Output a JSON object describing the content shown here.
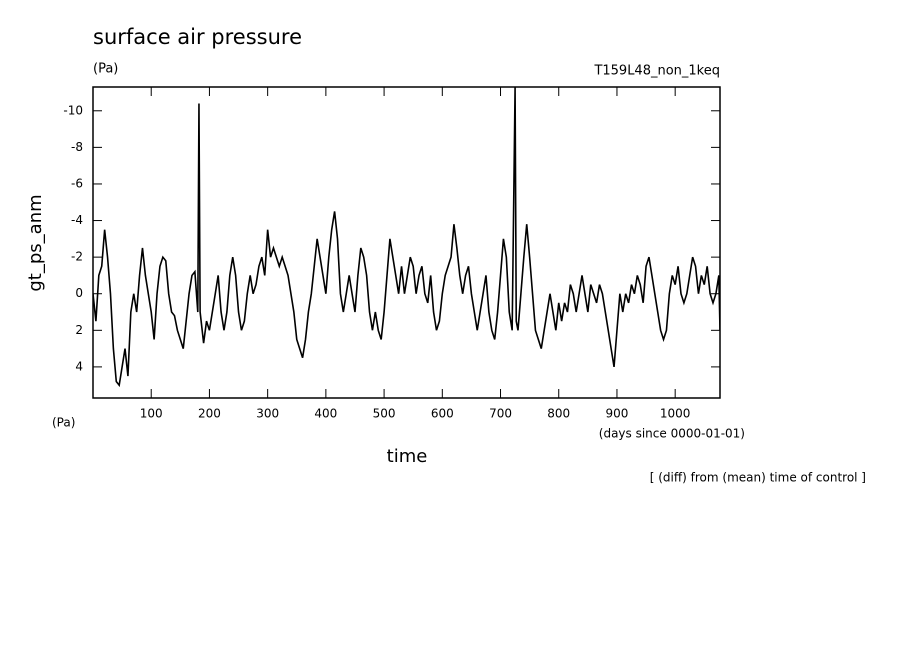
{
  "chart_data": {
    "type": "line",
    "title": "surface air pressure",
    "unit_label": "(Pa)",
    "run_label": "T159L48_non_1keq",
    "y_label": "gt_ps_anm",
    "y_unit_label": "(Pa)",
    "x_label": "time",
    "x_unit_label": "(days since 0000-01-01)",
    "note": "[ (diff) from (mean) time of control ]",
    "color": "#000000",
    "xlim": [
      0,
      1077
    ],
    "ylim": [
      5.7,
      -11.3
    ],
    "xticks": [
      100,
      200,
      300,
      400,
      500,
      600,
      700,
      800,
      900,
      1000
    ],
    "yticks": [
      -10,
      -8,
      -6,
      -4,
      -2,
      0,
      2,
      4
    ],
    "x": [
      0,
      5,
      10,
      15,
      20,
      25,
      30,
      35,
      40,
      45,
      50,
      55,
      60,
      65,
      70,
      75,
      80,
      85,
      90,
      95,
      100,
      105,
      110,
      115,
      120,
      125,
      130,
      135,
      140,
      145,
      150,
      155,
      160,
      165,
      170,
      175,
      180,
      182,
      184,
      190,
      195,
      200,
      205,
      210,
      215,
      220,
      225,
      230,
      235,
      240,
      245,
      250,
      255,
      260,
      265,
      270,
      275,
      280,
      285,
      290,
      295,
      300,
      305,
      310,
      315,
      320,
      325,
      330,
      335,
      340,
      345,
      350,
      355,
      360,
      365,
      370,
      375,
      380,
      385,
      390,
      395,
      400,
      405,
      410,
      415,
      420,
      425,
      430,
      435,
      440,
      445,
      450,
      455,
      460,
      465,
      470,
      475,
      480,
      485,
      490,
      495,
      500,
      505,
      510,
      515,
      520,
      525,
      530,
      535,
      540,
      545,
      550,
      555,
      560,
      565,
      570,
      575,
      580,
      585,
      590,
      595,
      600,
      605,
      610,
      615,
      620,
      625,
      630,
      635,
      640,
      645,
      650,
      655,
      660,
      665,
      670,
      675,
      680,
      685,
      690,
      695,
      700,
      705,
      710,
      715,
      720,
      725,
      727,
      730,
      735,
      740,
      745,
      750,
      755,
      760,
      765,
      770,
      775,
      780,
      785,
      790,
      795,
      800,
      805,
      810,
      815,
      820,
      825,
      830,
      835,
      840,
      845,
      850,
      855,
      860,
      865,
      870,
      875,
      880,
      885,
      890,
      895,
      900,
      905,
      910,
      915,
      920,
      925,
      930,
      935,
      940,
      945,
      950,
      955,
      960,
      965,
      970,
      975,
      980,
      985,
      990,
      995,
      1000,
      1005,
      1010,
      1015,
      1020,
      1025,
      1030,
      1035,
      1040,
      1045,
      1050,
      1055,
      1060,
      1065,
      1070,
      1075,
      1077
    ],
    "values": [
      0,
      1.5,
      -1,
      -1.5,
      -3.5,
      -2,
      0,
      3,
      4.8,
      5,
      4,
      3,
      4.5,
      1,
      0,
      1,
      -1,
      -2.5,
      -1,
      0,
      1,
      2.5,
      0,
      -1.5,
      -2,
      -1.8,
      0,
      1,
      1.2,
      2,
      2.5,
      3,
      1.5,
      0,
      -1,
      -1.2,
      1,
      -10.4,
      1,
      2.7,
      1.5,
      2,
      1,
      0,
      -1,
      1,
      2,
      1,
      -1,
      -2,
      -1,
      1,
      2,
      1.5,
      0,
      -1,
      0,
      -0.5,
      -1.5,
      -2,
      -1,
      -3.5,
      -2,
      -2.5,
      -2,
      -1.5,
      -2,
      -1.5,
      -1,
      0,
      1,
      2.5,
      3,
      3.5,
      2.5,
      1,
      0,
      -1.5,
      -3,
      -2,
      -1,
      0,
      -2,
      -3.5,
      -4.5,
      -3,
      0,
      1,
      0,
      -1,
      0,
      1,
      -1,
      -2.5,
      -2,
      -1,
      1,
      2,
      1,
      2,
      2.5,
      1,
      -1,
      -3,
      -2,
      -1,
      0,
      -1.5,
      0,
      -1,
      -2,
      -1.5,
      0,
      -1,
      -1.5,
      0,
      0.5,
      -1,
      1,
      2,
      1.5,
      0,
      -1,
      -1.5,
      -2,
      -3.8,
      -2.5,
      -1,
      0,
      -1,
      -1.5,
      0,
      1,
      2,
      1,
      0,
      -1,
      1,
      2,
      2.5,
      1,
      -1,
      -3,
      -2,
      1,
      2,
      -11.3,
      1.5,
      2,
      0,
      -2,
      -3.8,
      -2,
      0,
      2,
      2.5,
      3,
      2,
      1,
      0,
      1,
      2,
      0.5,
      1.5,
      0.5,
      1,
      -0.5,
      0,
      1,
      0,
      -1,
      0,
      1,
      -0.5,
      0,
      0.5,
      -0.5,
      0,
      1,
      2,
      3,
      4,
      2,
      0,
      1,
      0,
      0.5,
      -0.5,
      0,
      -1,
      -0.5,
      0.5,
      -1.5,
      -2,
      -1,
      0,
      1,
      2,
      2.5,
      2,
      0,
      -1,
      -0.5,
      -1.5,
      0,
      0.5,
      0,
      -1,
      -2,
      -1.5,
      0,
      -1,
      -0.5,
      -1.5,
      0,
      0.5,
      0,
      -1,
      2
    ]
  }
}
